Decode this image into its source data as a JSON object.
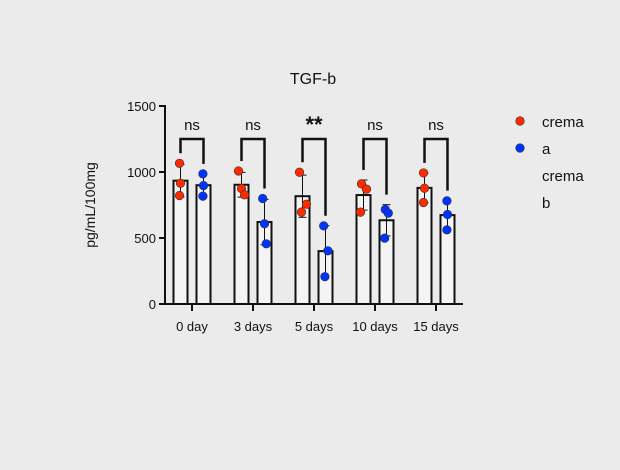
{
  "chart_data": {
    "type": "bar",
    "title": "TGF-b",
    "xlabel": "",
    "ylabel": "pg/mL/100mg",
    "ylim": [
      0,
      1500
    ],
    "yticks": [
      0,
      500,
      1000,
      1500
    ],
    "categories": [
      "0 day",
      "3 days",
      "5 days",
      "10 days",
      "15 days"
    ],
    "series": [
      {
        "name": "crema a",
        "legend_lines": [
          "crema",
          "a"
        ],
        "color": "#ff2a00",
        "points": [
          [
            1066,
            915,
            822
          ],
          [
            1008,
            875,
            827
          ],
          [
            998,
            756,
            696
          ],
          [
            910,
            870,
            696
          ],
          [
            993,
            877,
            769
          ]
        ]
      },
      {
        "name": "crema b",
        "legend_lines": [
          "crema",
          "b"
        ],
        "color": "#0033ff",
        "points": [
          [
            986,
            897,
            817
          ],
          [
            799,
            608,
            456
          ],
          [
            592,
            403,
            207
          ],
          [
            716,
            688,
            499
          ],
          [
            781,
            678,
            562
          ]
        ]
      }
    ],
    "bar_value": "mean",
    "error_bars": "SD",
    "significance": [
      "ns",
      "ns",
      "**",
      "ns",
      "ns"
    ],
    "legend_position": "right",
    "grid": false
  }
}
